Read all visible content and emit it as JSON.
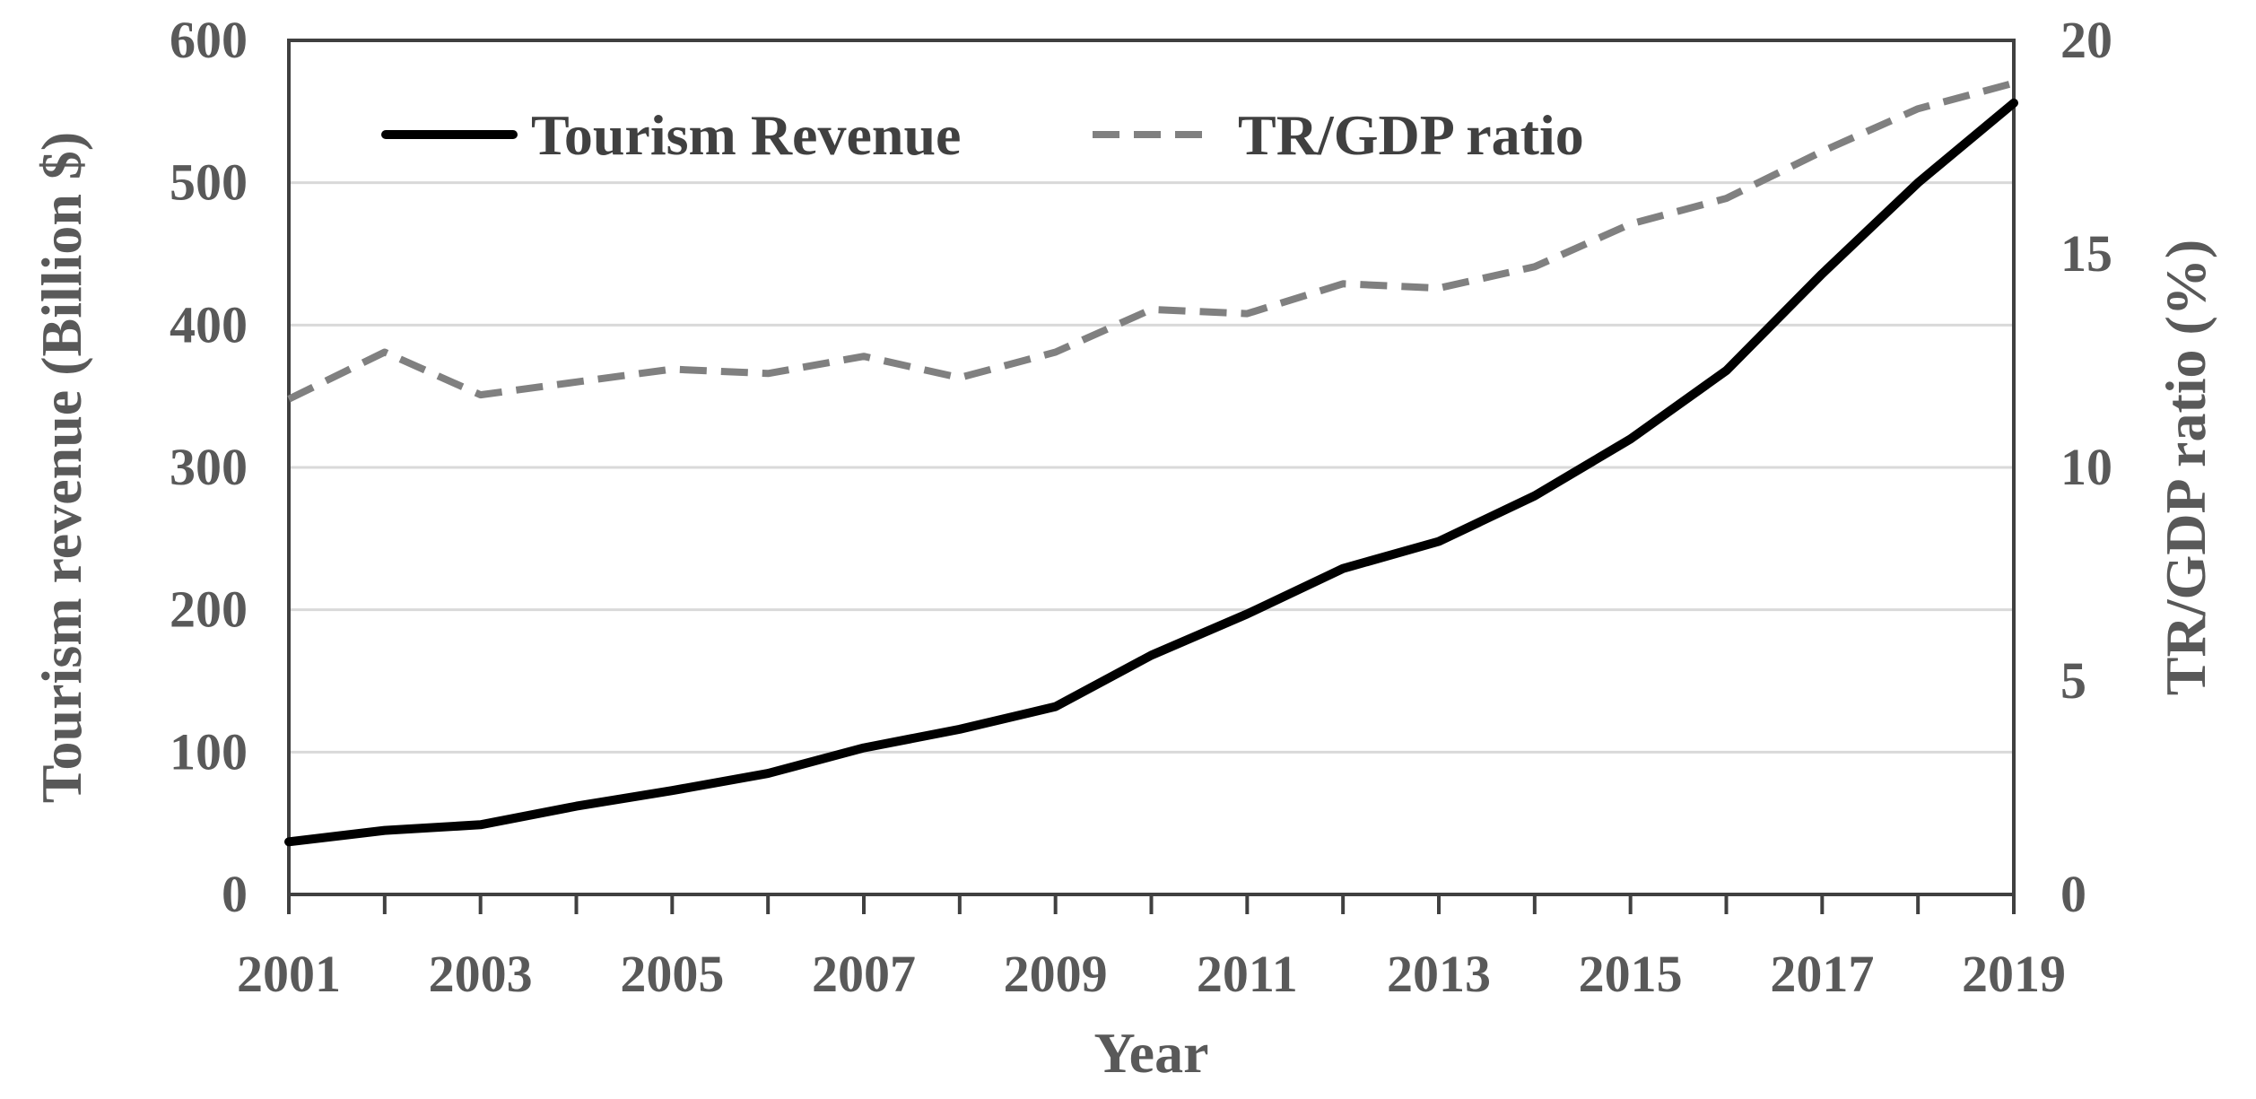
{
  "chart_data": {
    "type": "line",
    "title": "",
    "xlabel": "Year",
    "ylabel": "Tourism revenue (Billion $)",
    "y2label": "TR/GDP ratio (%)",
    "x": [
      2001,
      2002,
      2003,
      2004,
      2005,
      2006,
      2007,
      2008,
      2009,
      2010,
      2011,
      2012,
      2013,
      2014,
      2015,
      2016,
      2017,
      2018,
      2019
    ],
    "xticks": [
      "2001",
      "2003",
      "2005",
      "2007",
      "2009",
      "2011",
      "2013",
      "2015",
      "2017",
      "2019"
    ],
    "ylim": [
      0,
      600
    ],
    "yticks": [
      "0",
      "100",
      "200",
      "300",
      "400",
      "500",
      "600"
    ],
    "y2lim": [
      0,
      20
    ],
    "y2ticks": [
      "0",
      "5",
      "10",
      "15",
      "20"
    ],
    "grid": true,
    "legend_position": "top-left",
    "series": [
      {
        "name": "Tourism Revenue",
        "axis": "left",
        "style": "solid",
        "color": "#000000",
        "values": [
          37,
          45,
          49,
          62,
          73,
          85,
          103,
          116,
          132,
          168,
          197,
          229,
          248,
          280,
          320,
          368,
          436,
          500,
          556
        ]
      },
      {
        "name": "TR/GDP ratio",
        "axis": "right",
        "style": "dashed",
        "color": "#808080",
        "values": [
          11.6,
          12.7,
          11.7,
          12.0,
          12.3,
          12.2,
          12.6,
          12.1,
          12.7,
          13.7,
          13.6,
          14.3,
          14.2,
          14.7,
          15.7,
          16.3,
          17.4,
          18.4,
          19.0
        ]
      }
    ]
  }
}
